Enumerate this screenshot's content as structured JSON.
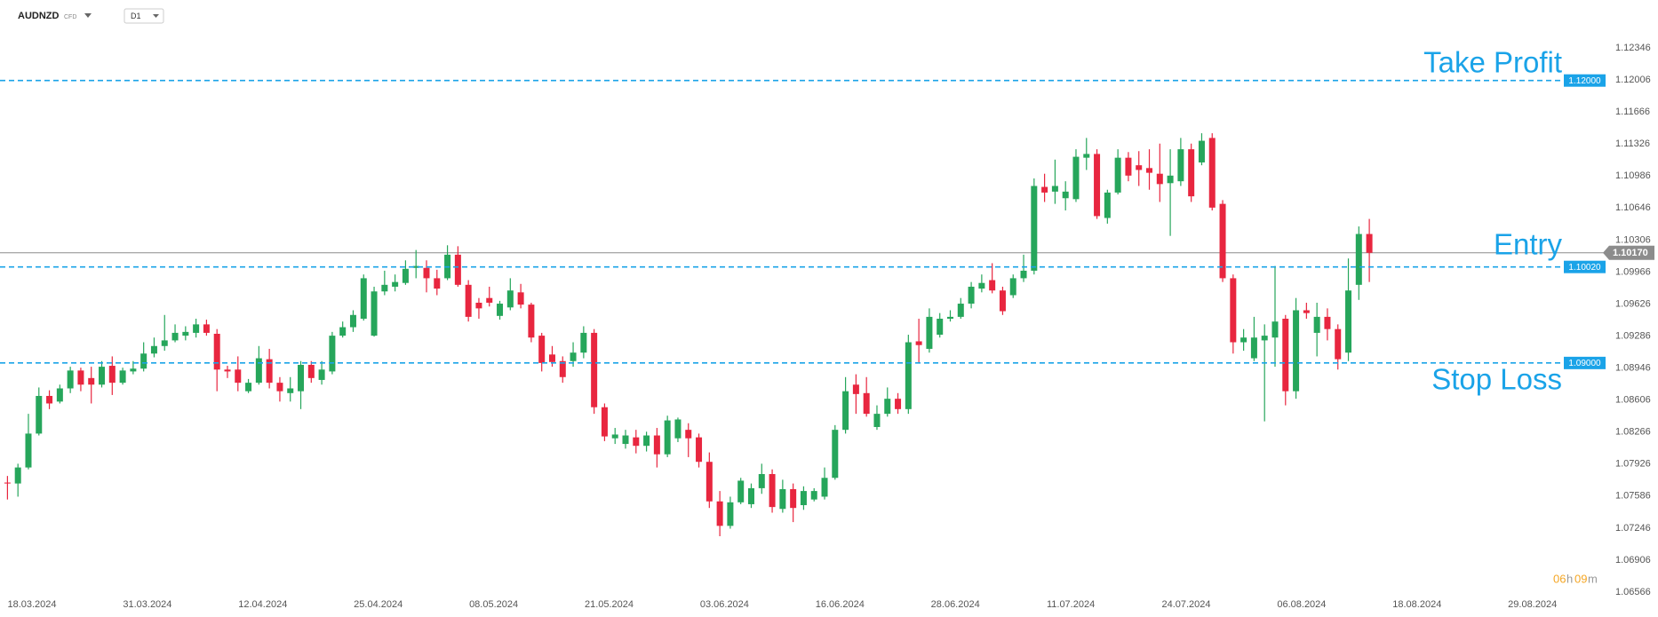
{
  "chart_data": {
    "type": "candlestick",
    "symbol": "AUDNZD",
    "symbol_type": "CFD",
    "timeframe": "D1",
    "up_color": "#26a65b",
    "down_color": "#e8263f",
    "level_color": "#1aa3e8",
    "last_color": "#8c8c8c",
    "ylim": [
      1.06566,
      1.12346
    ],
    "yticks": [
      1.12346,
      1.12006,
      1.11666,
      1.11326,
      1.10986,
      1.10646,
      1.10306,
      1.09966,
      1.09626,
      1.09286,
      1.08946,
      1.08606,
      1.08266,
      1.07926,
      1.07586,
      1.07246,
      1.06906,
      1.06566
    ],
    "grid": false,
    "x_labels": [
      "18.03.2024",
      "31.03.2024",
      "12.04.2024",
      "25.04.2024",
      "08.05.2024",
      "21.05.2024",
      "03.06.2024",
      "16.06.2024",
      "28.06.2024",
      "11.07.2024",
      "24.07.2024",
      "06.08.2024",
      "18.08.2024",
      "29.08.2024"
    ],
    "levels": [
      {
        "name": "Take Profit",
        "value": 1.12,
        "label": "1.12000"
      },
      {
        "name": "Entry",
        "value": 1.1002,
        "label": "1.10020"
      },
      {
        "name": "Stop Loss",
        "value": 1.09,
        "label": "1.09000"
      }
    ],
    "last_price": {
      "value": 1.1017,
      "label": "1.10170"
    },
    "countdown": [
      "06",
      "h",
      "09",
      "m"
    ],
    "candles": [
      [
        1.0773,
        1.078,
        1.0755,
        1.0772
      ],
      [
        1.0772,
        1.0793,
        1.0758,
        1.0789
      ],
      [
        1.0789,
        1.0846,
        1.0787,
        1.0825
      ],
      [
        1.0825,
        1.0874,
        1.0823,
        1.0865
      ],
      [
        1.0865,
        1.0871,
        1.0851,
        1.0857
      ],
      [
        1.0859,
        1.0877,
        1.0857,
        1.0873
      ],
      [
        1.0873,
        1.0896,
        1.0868,
        1.0892
      ],
      [
        1.0892,
        1.0895,
        1.087,
        1.0877
      ],
      [
        1.0884,
        1.0896,
        1.0857,
        1.0877
      ],
      [
        1.0877,
        1.0902,
        1.0874,
        1.0896
      ],
      [
        1.0897,
        1.0907,
        1.0866,
        1.0879
      ],
      [
        1.0879,
        1.0895,
        1.0877,
        1.0892
      ],
      [
        1.0891,
        1.0902,
        1.0888,
        1.0894
      ],
      [
        1.0894,
        1.0922,
        1.0891,
        1.091
      ],
      [
        1.091,
        1.0927,
        1.0906,
        1.0918
      ],
      [
        1.0918,
        1.0951,
        1.0913,
        1.0924
      ],
      [
        1.0924,
        1.0941,
        1.0922,
        1.0932
      ],
      [
        1.0929,
        1.0939,
        1.0924,
        1.0933
      ],
      [
        1.0932,
        1.0947,
        1.0927,
        1.0941
      ],
      [
        1.0941,
        1.0946,
        1.0929,
        1.0932
      ],
      [
        1.0931,
        1.0936,
        1.087,
        1.0893
      ],
      [
        1.0893,
        1.0897,
        1.0884,
        1.0891
      ],
      [
        1.0893,
        1.0907,
        1.087,
        1.0879
      ],
      [
        1.087,
        1.0883,
        1.0868,
        1.0879
      ],
      [
        1.0879,
        1.0918,
        1.0877,
        1.0905
      ],
      [
        1.0904,
        1.0915,
        1.0873,
        1.0879
      ],
      [
        1.0879,
        1.0885,
        1.0859,
        1.087
      ],
      [
        1.0868,
        1.0885,
        1.0859,
        1.0873
      ],
      [
        1.087,
        1.0902,
        1.0851,
        1.0898
      ],
      [
        1.0898,
        1.0902,
        1.0879,
        1.0884
      ],
      [
        1.0882,
        1.0902,
        1.0877,
        1.0893
      ],
      [
        1.0891,
        1.0933,
        1.0888,
        1.0929
      ],
      [
        1.0929,
        1.0944,
        1.0927,
        1.0938
      ],
      [
        1.0938,
        1.0956,
        1.0933,
        1.0951
      ],
      [
        1.0947,
        1.0994,
        1.0945,
        1.099
      ],
      [
        1.0929,
        1.0981,
        1.0928,
        1.0976
      ],
      [
        1.0976,
        1.0998,
        1.0972,
        1.0983
      ],
      [
        1.0981,
        1.0994,
        1.0976,
        1.0986
      ],
      [
        1.0985,
        1.1009,
        1.0983,
        1.1
      ],
      [
        1.1001,
        1.102,
        1.099,
        1.1003
      ],
      [
        1.1001,
        1.1009,
        1.0975,
        1.099
      ],
      [
        1.099,
        1.0999,
        1.0972,
        1.0979
      ],
      [
        1.099,
        1.1025,
        1.0988,
        1.1015
      ],
      [
        1.1015,
        1.1024,
        1.0981,
        1.0983
      ],
      [
        1.0983,
        1.0988,
        1.0944,
        1.0949
      ],
      [
        1.0964,
        1.0969,
        1.0947,
        1.0958
      ],
      [
        1.0969,
        1.0981,
        1.096,
        1.0964
      ],
      [
        1.095,
        1.0966,
        1.0946,
        1.0963
      ],
      [
        1.0959,
        1.099,
        1.0956,
        1.0977
      ],
      [
        1.0975,
        1.0984,
        1.0958,
        1.0962
      ],
      [
        1.0962,
        1.0964,
        1.0922,
        1.0927
      ],
      [
        1.0929,
        1.0932,
        1.0891,
        1.09
      ],
      [
        1.0909,
        1.0918,
        1.0896,
        1.0901
      ],
      [
        1.0902,
        1.0907,
        1.0879,
        1.0885
      ],
      [
        1.0902,
        1.0922,
        1.0896,
        1.0911
      ],
      [
        1.0911,
        1.0939,
        1.0905,
        1.0932
      ],
      [
        1.0932,
        1.0936,
        1.0846,
        1.0853
      ],
      [
        1.0853,
        1.0857,
        1.0817,
        1.0822
      ],
      [
        1.082,
        1.0831,
        1.0814,
        1.0824
      ],
      [
        1.0814,
        1.0829,
        1.0809,
        1.0823
      ],
      [
        1.0821,
        1.0829,
        1.0804,
        1.0812
      ],
      [
        1.0812,
        1.0827,
        1.0806,
        1.0823
      ],
      [
        1.0823,
        1.0831,
        1.0789,
        1.0803
      ],
      [
        1.0803,
        1.0844,
        1.08,
        1.0839
      ],
      [
        1.082,
        1.0842,
        1.0816,
        1.084
      ],
      [
        1.0829,
        1.0836,
        1.08,
        1.082
      ],
      [
        1.0821,
        1.0825,
        1.0789,
        1.0795
      ],
      [
        1.0795,
        1.0805,
        1.0746,
        1.0753
      ],
      [
        1.0753,
        1.0764,
        1.0716,
        1.0727
      ],
      [
        1.0727,
        1.0758,
        1.0724,
        1.0752
      ],
      [
        1.0752,
        1.0778,
        1.075,
        1.0775
      ],
      [
        1.075,
        1.0772,
        1.0746,
        1.0767
      ],
      [
        1.0767,
        1.0793,
        1.0761,
        1.0782
      ],
      [
        1.0782,
        1.0787,
        1.0741,
        1.0747
      ],
      [
        1.0745,
        1.0776,
        1.0741,
        1.0766
      ],
      [
        1.0766,
        1.0772,
        1.0731,
        1.0746
      ],
      [
        1.0749,
        1.0769,
        1.0744,
        1.0764
      ],
      [
        1.0755,
        1.0767,
        1.0753,
        1.0764
      ],
      [
        1.0758,
        1.0789,
        1.0755,
        1.0778
      ],
      [
        1.0778,
        1.0834,
        1.0776,
        1.0829
      ],
      [
        1.0829,
        1.0885,
        1.0825,
        1.087
      ],
      [
        1.0877,
        1.0888,
        1.0846,
        1.0867
      ],
      [
        1.0868,
        1.0885,
        1.0843,
        1.0846
      ],
      [
        1.0832,
        1.0855,
        1.0829,
        1.0846
      ],
      [
        1.0846,
        1.0874,
        1.0843,
        1.0862
      ],
      [
        1.0862,
        1.0868,
        1.0846,
        1.0851
      ],
      [
        1.0851,
        1.093,
        1.0846,
        1.0922
      ],
      [
        1.0923,
        1.0947,
        1.09,
        1.0919
      ],
      [
        1.0915,
        1.0958,
        1.0911,
        1.0949
      ],
      [
        1.093,
        1.0953,
        1.0927,
        1.0947
      ],
      [
        1.0947,
        1.0956,
        1.0944,
        1.0949
      ],
      [
        1.0949,
        1.0969,
        1.0947,
        1.0963
      ],
      [
        1.0963,
        1.0986,
        1.0958,
        1.0981
      ],
      [
        1.0979,
        1.0994,
        1.0975,
        1.0985
      ],
      [
        1.0988,
        1.1006,
        1.0974,
        1.0977
      ],
      [
        1.0977,
        1.0981,
        1.0951,
        1.0955
      ],
      [
        1.0972,
        1.0994,
        1.0969,
        1.099
      ],
      [
        1.099,
        1.1015,
        1.0986,
        1.0998
      ],
      [
        1.0998,
        1.1096,
        1.0994,
        1.1088
      ],
      [
        1.1087,
        1.1101,
        1.1071,
        1.1081
      ],
      [
        1.1082,
        1.1116,
        1.1069,
        1.1088
      ],
      [
        1.1075,
        1.1093,
        1.1062,
        1.1082
      ],
      [
        1.1074,
        1.1127,
        1.1071,
        1.1119
      ],
      [
        1.1118,
        1.1139,
        1.1105,
        1.1122
      ],
      [
        1.1122,
        1.1127,
        1.1053,
        1.1056
      ],
      [
        1.1054,
        1.1084,
        1.1048,
        1.1081
      ],
      [
        1.1081,
        1.1127,
        1.1079,
        1.1118
      ],
      [
        1.1118,
        1.1124,
        1.1093,
        1.1099
      ],
      [
        1.111,
        1.1125,
        1.1088,
        1.1105
      ],
      [
        1.1107,
        1.1127,
        1.1084,
        1.1102
      ],
      [
        1.1101,
        1.1133,
        1.1071,
        1.109
      ],
      [
        1.1091,
        1.1127,
        1.1035,
        1.1099
      ],
      [
        1.1093,
        1.1139,
        1.1088,
        1.1127
      ],
      [
        1.1127,
        1.1133,
        1.1071,
        1.1077
      ],
      [
        1.1113,
        1.1144,
        1.111,
        1.1136
      ],
      [
        1.1139,
        1.1144,
        1.1062,
        1.1065
      ],
      [
        1.1069,
        1.1073,
        1.0986,
        1.099
      ],
      [
        1.099,
        1.0994,
        1.091,
        1.0922
      ],
      [
        1.0922,
        1.0936,
        1.0913,
        1.0927
      ],
      [
        1.0905,
        1.0949,
        1.0902,
        1.0927
      ],
      [
        1.0924,
        1.0941,
        1.0838,
        1.0929
      ],
      [
        1.0927,
        1.1003,
        1.0896,
        1.0944
      ],
      [
        1.0947,
        1.0951,
        1.0855,
        1.087
      ],
      [
        1.087,
        1.0969,
        1.0862,
        1.0956
      ],
      [
        1.0956,
        1.0964,
        1.0947,
        1.0953
      ],
      [
        1.0932,
        1.0964,
        1.0907,
        1.0949
      ],
      [
        1.0949,
        1.0958,
        1.0924,
        1.0936
      ],
      [
        1.0936,
        1.0941,
        1.0893,
        1.0904
      ],
      [
        1.0911,
        1.1011,
        1.0902,
        1.0977
      ],
      [
        1.0983,
        1.1045,
        1.0967,
        1.1037
      ],
      [
        1.1037,
        1.1053,
        1.0986,
        1.1017
      ]
    ]
  }
}
